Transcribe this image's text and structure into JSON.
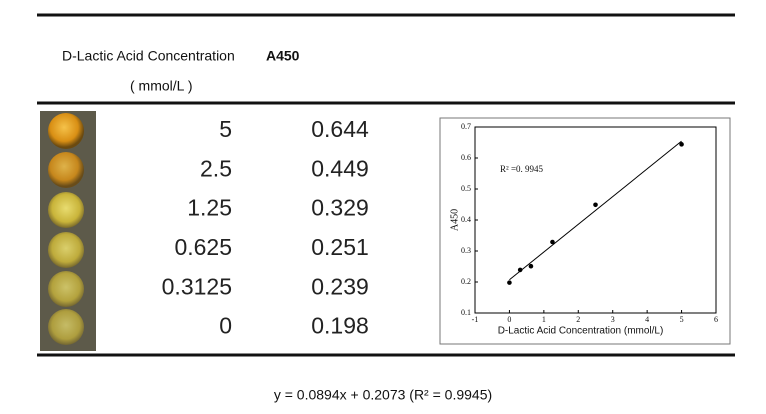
{
  "table": {
    "header": {
      "concentration": "D-Lactic Acid Concentration",
      "unit": "( mmol/L )",
      "absorbance": "A450"
    }
  },
  "chart_data": {
    "type": "scatter",
    "x": [
      5,
      2.5,
      1.25,
      0.625,
      0.3125,
      0
    ],
    "values": [
      0.644,
      0.449,
      0.329,
      0.251,
      0.239,
      0.198
    ],
    "color": "#000000",
    "trendline": "linear",
    "xlabel": "D-Lactic Acid Concentration (mmol/L)",
    "ylabel": "A450",
    "annotation": "R² =0. 9945",
    "xlim": [
      -1,
      6
    ],
    "xticks": [
      -1,
      0,
      1,
      2,
      3,
      4,
      5,
      6
    ],
    "ylim": [
      0.1,
      0.7
    ],
    "yticks": [
      0.1,
      0.2,
      0.3,
      0.4,
      0.5,
      0.6,
      0.7
    ]
  },
  "equation": "y = 0.0894x + 0.2073 (R² = 0.9945)"
}
